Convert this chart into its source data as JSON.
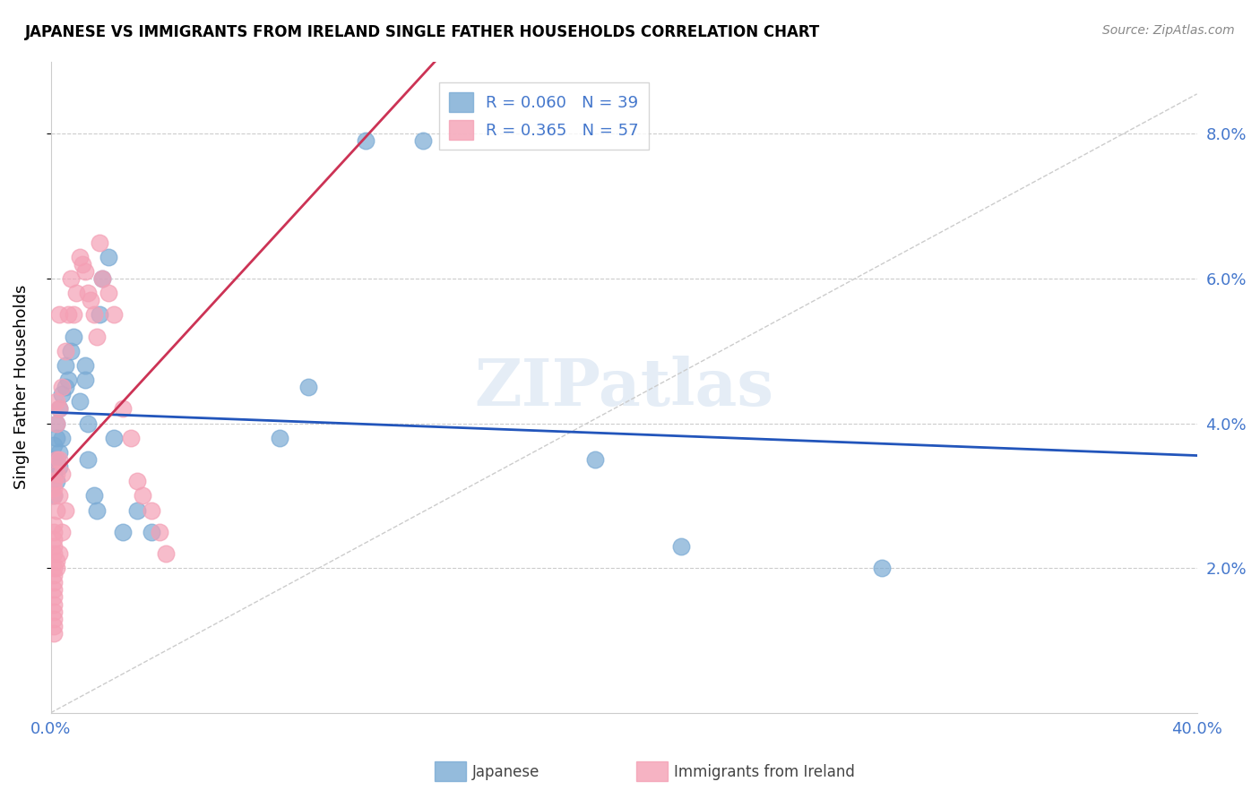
{
  "title": "JAPANESE VS IMMIGRANTS FROM IRELAND SINGLE FATHER HOUSEHOLDS CORRELATION CHART",
  "source": "Source: ZipAtlas.com",
  "ylabel": "Single Father Households",
  "xmin": 0.0,
  "xmax": 0.4,
  "ymin": 0.0,
  "ymax": 0.09,
  "yticks": [
    0.02,
    0.04,
    0.06,
    0.08
  ],
  "ytick_labels": [
    "2.0%",
    "4.0%",
    "6.0%",
    "8.0%"
  ],
  "xticks": [
    0.0,
    0.08,
    0.16,
    0.24,
    0.32,
    0.4
  ],
  "xtick_labels": [
    "0.0%",
    "",
    "",
    "",
    "",
    "40.0%"
  ],
  "watermark": "ZIPatlas",
  "series1_label": "Japanese",
  "series1_R": "0.060",
  "series1_N": "39",
  "series1_color": "#7aaad4",
  "series2_label": "Immigrants from Ireland",
  "series2_R": "0.365",
  "series2_N": "57",
  "series2_color": "#f4a0b5",
  "japanese_x": [
    0.001,
    0.001,
    0.001,
    0.001,
    0.002,
    0.002,
    0.002,
    0.002,
    0.003,
    0.003,
    0.003,
    0.004,
    0.004,
    0.005,
    0.005,
    0.006,
    0.007,
    0.008,
    0.01,
    0.012,
    0.012,
    0.013,
    0.013,
    0.015,
    0.016,
    0.017,
    0.018,
    0.02,
    0.022,
    0.025,
    0.03,
    0.035,
    0.08,
    0.09,
    0.11,
    0.13,
    0.19,
    0.22,
    0.29
  ],
  "japanese_y": [
    0.035,
    0.037,
    0.033,
    0.03,
    0.032,
    0.035,
    0.038,
    0.04,
    0.036,
    0.034,
    0.042,
    0.044,
    0.038,
    0.045,
    0.048,
    0.046,
    0.05,
    0.052,
    0.043,
    0.046,
    0.048,
    0.04,
    0.035,
    0.03,
    0.028,
    0.055,
    0.06,
    0.063,
    0.038,
    0.025,
    0.028,
    0.025,
    0.038,
    0.045,
    0.079,
    0.079,
    0.035,
    0.023,
    0.02
  ],
  "ireland_x": [
    0.001,
    0.001,
    0.001,
    0.001,
    0.001,
    0.001,
    0.001,
    0.001,
    0.001,
    0.001,
    0.001,
    0.001,
    0.001,
    0.001,
    0.001,
    0.001,
    0.001,
    0.001,
    0.002,
    0.002,
    0.002,
    0.002,
    0.002,
    0.002,
    0.002,
    0.003,
    0.003,
    0.003,
    0.003,
    0.003,
    0.004,
    0.004,
    0.004,
    0.005,
    0.005,
    0.006,
    0.007,
    0.008,
    0.009,
    0.01,
    0.011,
    0.012,
    0.013,
    0.014,
    0.015,
    0.016,
    0.017,
    0.018,
    0.02,
    0.022,
    0.025,
    0.028,
    0.03,
    0.032,
    0.035,
    0.038,
    0.04
  ],
  "ireland_y": [
    0.02,
    0.019,
    0.018,
    0.017,
    0.016,
    0.015,
    0.014,
    0.013,
    0.012,
    0.011,
    0.022,
    0.023,
    0.024,
    0.025,
    0.026,
    0.03,
    0.031,
    0.032,
    0.02,
    0.021,
    0.028,
    0.033,
    0.035,
    0.04,
    0.043,
    0.022,
    0.03,
    0.035,
    0.042,
    0.055,
    0.025,
    0.033,
    0.045,
    0.028,
    0.05,
    0.055,
    0.06,
    0.055,
    0.058,
    0.063,
    0.062,
    0.061,
    0.058,
    0.057,
    0.055,
    0.052,
    0.065,
    0.06,
    0.058,
    0.055,
    0.042,
    0.038,
    0.032,
    0.03,
    0.028,
    0.025,
    0.022
  ]
}
